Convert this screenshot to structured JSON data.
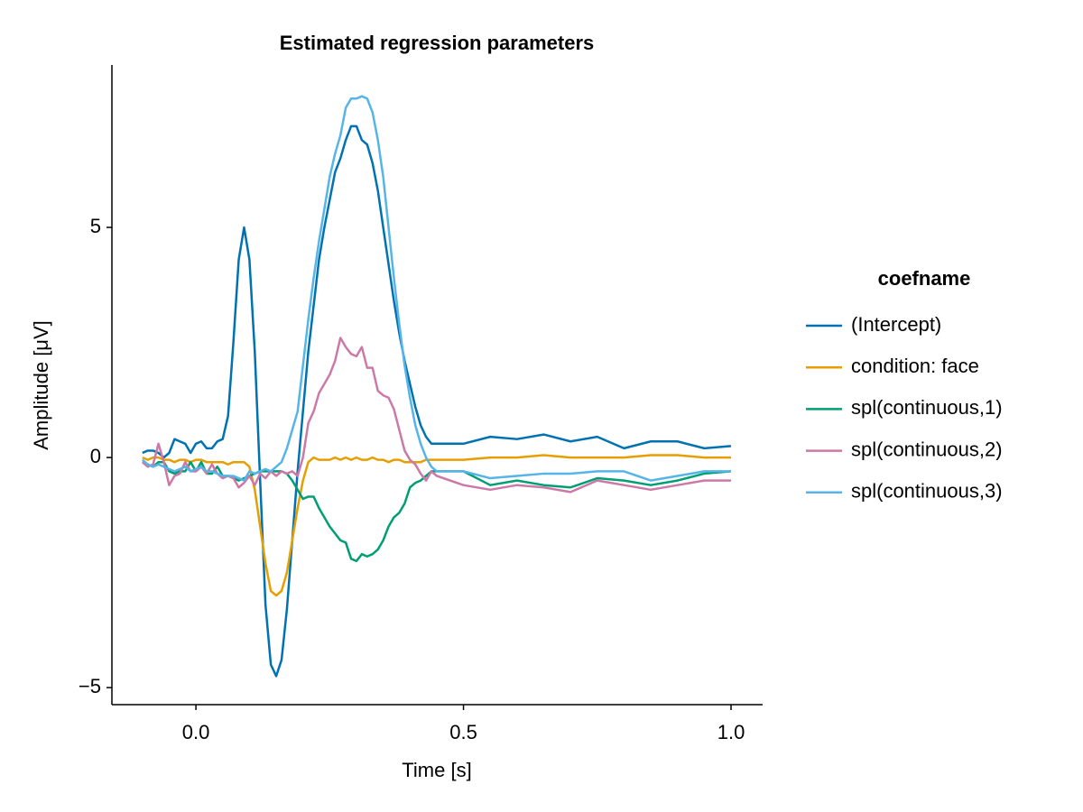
{
  "chart_data": {
    "type": "line",
    "title": "Estimated regression parameters",
    "xlabel": "Time [s]",
    "ylabel": "Amplitude [μV]",
    "legend_title": "coefname",
    "legend": "right",
    "grid": false,
    "x": [
      -0.1,
      -0.09,
      -0.08,
      -0.07,
      -0.06,
      -0.05,
      -0.04,
      -0.03,
      -0.02,
      -0.01,
      0,
      0.01,
      0.02,
      0.03,
      0.04,
      0.05,
      0.06,
      0.07,
      0.08,
      0.09,
      0.1,
      0.11,
      0.12,
      0.13,
      0.14,
      0.15,
      0.16,
      0.17,
      0.18,
      0.19,
      0.2,
      0.21,
      0.22,
      0.23,
      0.24,
      0.25,
      0.26,
      0.27,
      0.28,
      0.29,
      0.3,
      0.31,
      0.32,
      0.33,
      0.34,
      0.35,
      0.36,
      0.37,
      0.38,
      0.39,
      0.4,
      0.41,
      0.42,
      0.43,
      0.44,
      0.45,
      0.5,
      0.55,
      0.6,
      0.65,
      0.7,
      0.75,
      0.8,
      0.85,
      0.9,
      0.95,
      1.0
    ],
    "series": [
      {
        "name": "(Intercept)",
        "color": "#0072b2",
        "values": [
          0.1,
          0.15,
          0.15,
          0.1,
          0.0,
          0.1,
          0.4,
          0.35,
          0.3,
          0.1,
          0.3,
          0.35,
          0.2,
          0.2,
          0.35,
          0.4,
          0.9,
          2.5,
          4.3,
          5.0,
          4.3,
          2.3,
          -0.5,
          -3.2,
          -4.5,
          -4.75,
          -4.4,
          -3.3,
          -1.8,
          -0.3,
          1.0,
          2.3,
          3.3,
          4.3,
          5.0,
          5.6,
          6.2,
          6.5,
          6.9,
          7.2,
          7.2,
          6.9,
          6.8,
          6.4,
          5.8,
          5.0,
          4.2,
          3.4,
          2.7,
          2.1,
          1.6,
          1.1,
          0.7,
          0.45,
          0.3,
          0.3,
          0.3,
          0.45,
          0.4,
          0.5,
          0.35,
          0.45,
          0.2,
          0.35,
          0.35,
          0.2,
          0.25
        ]
      },
      {
        "name": "condition: face",
        "color": "#e69f00",
        "values": [
          0,
          -0.05,
          0,
          0,
          -0.05,
          -0.05,
          -0.1,
          -0.05,
          -0.05,
          -0.1,
          -0.05,
          -0.05,
          -0.1,
          -0.1,
          -0.1,
          -0.1,
          -0.15,
          -0.1,
          -0.1,
          -0.1,
          -0.2,
          -0.7,
          -1.5,
          -2.3,
          -2.9,
          -3.0,
          -2.9,
          -2.5,
          -1.8,
          -1.1,
          -0.5,
          -0.1,
          0.0,
          -0.05,
          -0.05,
          -0.05,
          0,
          -0.05,
          0,
          -0.05,
          0,
          -0.05,
          -0.05,
          0,
          -0.05,
          -0.05,
          -0.1,
          -0.05,
          -0.05,
          -0.1,
          -0.1,
          -0.1,
          -0.1,
          -0.05,
          -0.05,
          -0.05,
          -0.05,
          0,
          0,
          0.05,
          0,
          0,
          0,
          0.05,
          0.05,
          0,
          0
        ]
      },
      {
        "name": "spl(continuous,1)",
        "color": "#009e73",
        "values": [
          -0.1,
          -0.15,
          -0.2,
          -0.1,
          -0.1,
          -0.3,
          -0.35,
          -0.3,
          -0.3,
          -0.1,
          -0.3,
          -0.1,
          -0.35,
          -0.35,
          -0.2,
          -0.4,
          -0.4,
          -0.45,
          -0.5,
          -0.45,
          -0.4,
          -0.35,
          -0.3,
          -0.3,
          -0.3,
          -0.3,
          -0.3,
          -0.35,
          -0.5,
          -0.7,
          -0.9,
          -0.85,
          -0.85,
          -1.1,
          -1.3,
          -1.5,
          -1.65,
          -1.8,
          -1.85,
          -2.2,
          -2.25,
          -2.1,
          -2.15,
          -2.1,
          -2.0,
          -1.8,
          -1.5,
          -1.3,
          -1.2,
          -1.0,
          -0.65,
          -0.55,
          -0.5,
          -0.4,
          -0.3,
          -0.3,
          -0.3,
          -0.6,
          -0.5,
          -0.6,
          -0.65,
          -0.45,
          -0.5,
          -0.6,
          -0.5,
          -0.35,
          -0.3
        ]
      },
      {
        "name": "spl(continuous,2)",
        "color": "#cc79a7",
        "values": [
          -0.1,
          -0.2,
          -0.15,
          0.3,
          -0.1,
          -0.6,
          -0.4,
          -0.35,
          -0.1,
          -0.3,
          -0.3,
          -0.2,
          -0.35,
          -0.15,
          -0.35,
          -0.45,
          -0.4,
          -0.45,
          -0.65,
          -0.55,
          -0.4,
          -0.6,
          -0.35,
          -0.45,
          -0.3,
          -0.4,
          -0.3,
          -0.35,
          -0.3,
          -0.4,
          0.0,
          0.75,
          1.0,
          1.4,
          1.6,
          1.8,
          2.1,
          2.6,
          2.4,
          2.25,
          2.2,
          2.4,
          1.95,
          1.95,
          1.45,
          1.35,
          1.3,
          1.05,
          0.6,
          0.15,
          -0.05,
          -0.15,
          -0.35,
          -0.5,
          -0.3,
          -0.4,
          -0.6,
          -0.7,
          -0.6,
          -0.65,
          -0.75,
          -0.5,
          -0.6,
          -0.7,
          -0.6,
          -0.5,
          -0.5
        ]
      },
      {
        "name": "spl(continuous,3)",
        "color": "#56b4e9",
        "values": [
          -0.05,
          -0.15,
          -0.2,
          -0.15,
          -0.2,
          -0.25,
          -0.3,
          -0.25,
          -0.2,
          -0.3,
          -0.25,
          -0.2,
          -0.3,
          -0.3,
          -0.35,
          -0.4,
          -0.4,
          -0.4,
          -0.45,
          -0.5,
          -0.3,
          -0.35,
          -0.3,
          -0.25,
          -0.3,
          -0.2,
          -0.1,
          0.2,
          0.6,
          1.0,
          2.0,
          3.0,
          3.9,
          4.7,
          5.4,
          6.1,
          6.6,
          7.0,
          7.6,
          7.8,
          7.8,
          7.85,
          7.8,
          7.5,
          6.9,
          6.1,
          5.0,
          3.9,
          2.9,
          2.0,
          1.3,
          0.7,
          0.3,
          0.0,
          -0.2,
          -0.3,
          -0.3,
          -0.45,
          -0.4,
          -0.35,
          -0.35,
          -0.3,
          -0.3,
          -0.5,
          -0.4,
          -0.3,
          -0.3
        ]
      }
    ],
    "xlim": [
      -0.157,
      1.059
    ],
    "ylim": [
      -5.37,
      8.53
    ],
    "xticks": [
      {
        "value": 0,
        "label": "0.0"
      },
      {
        "value": 0.5,
        "label": "0.5"
      },
      {
        "value": 1,
        "label": "1.0"
      }
    ],
    "yticks": [
      {
        "value": -5,
        "label": "−5"
      },
      0,
      5
    ]
  }
}
